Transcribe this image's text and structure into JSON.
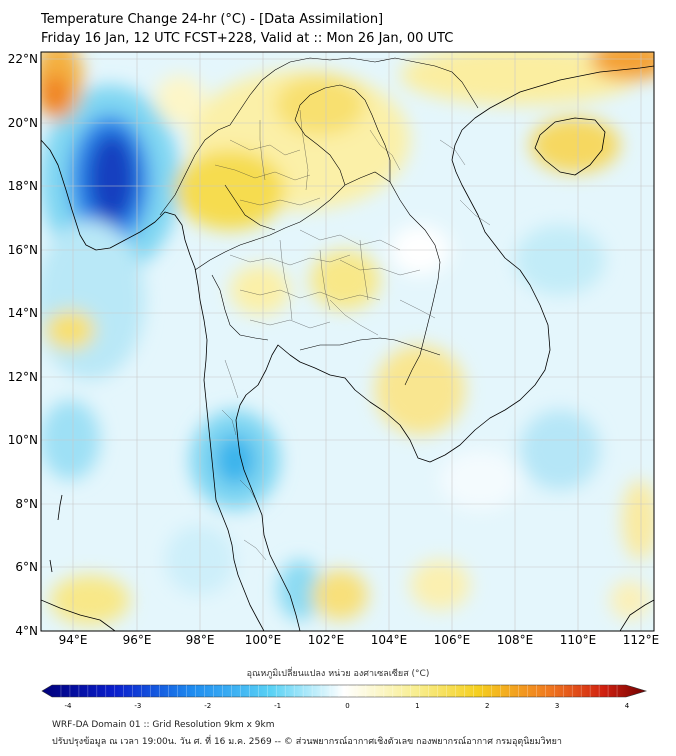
{
  "header": {
    "title_line1": "Temperature Change 24-hr (°C) - [Data Assimilation]",
    "title_line2": "Friday 16 Jan, 12 UTC FCST+228, Valid at :: Mon 26 Jan, 00 UTC"
  },
  "map": {
    "lon_range": [
      93,
      112.3
    ],
    "lat_range": [
      4,
      22.2
    ],
    "lat_ticks": [
      "22°N",
      "20°N",
      "18°N",
      "16°N",
      "14°N",
      "12°N",
      "10°N",
      "8°N",
      "6°N",
      "4°N"
    ],
    "lon_ticks": [
      "94°E",
      "96°E",
      "98°E",
      "100°E",
      "102°E",
      "104°E",
      "106°E",
      "108°E",
      "110°E",
      "112°E"
    ]
  },
  "colorbar": {
    "label": "อุณหภูมิเปลี่ยนแปลง หน่วย องศาเซลเซียส (°C)",
    "ticks": [
      "-4",
      "-3",
      "-2",
      "-1",
      "0",
      "1",
      "2",
      "3",
      "4"
    ],
    "range": [
      -4,
      4
    ]
  },
  "footer": {
    "line1": "WRF-DA Domain 01 :: Grid Resolution 9km x 9km",
    "line2": "ปรับปรุงข้อมูล ณ เวลา 19:00น. วัน ศ. ที่ 16 ม.ค. 2569 -- © ส่วนพยากรณ์อากาศเชิงตัวเลข กองพยากรณ์อากาศ กรมอุตุนิยมวิทยา"
  },
  "colors": {
    "cold_deep": "#0000a0",
    "cold": "#1e6cf0",
    "cool": "#46c8f0",
    "neutral": "#ffffff",
    "warm": "#f5e040",
    "hot": "#f08020",
    "very_hot": "#a00000",
    "coastline": "#000000"
  }
}
